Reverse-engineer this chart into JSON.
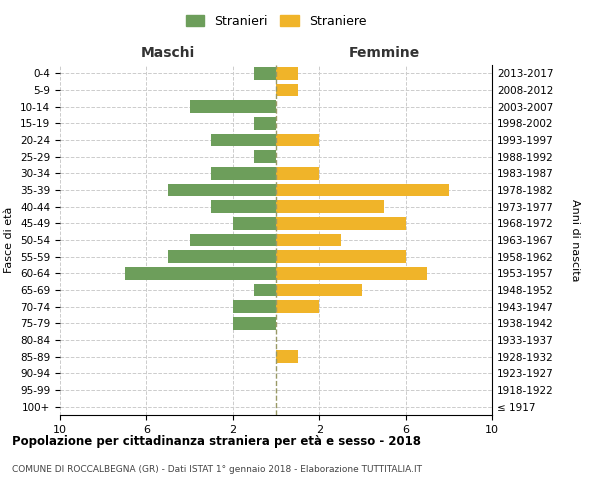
{
  "age_groups": [
    "0-4",
    "5-9",
    "10-14",
    "15-19",
    "20-24",
    "25-29",
    "30-34",
    "35-39",
    "40-44",
    "45-49",
    "50-54",
    "55-59",
    "60-64",
    "65-69",
    "70-74",
    "75-79",
    "80-84",
    "85-89",
    "90-94",
    "95-99",
    "100+"
  ],
  "birth_years": [
    "2013-2017",
    "2008-2012",
    "2003-2007",
    "1998-2002",
    "1993-1997",
    "1988-1992",
    "1983-1987",
    "1978-1982",
    "1973-1977",
    "1968-1972",
    "1963-1967",
    "1958-1962",
    "1953-1957",
    "1948-1952",
    "1943-1947",
    "1938-1942",
    "1933-1937",
    "1928-1932",
    "1923-1927",
    "1918-1922",
    "≤ 1917"
  ],
  "males": [
    1,
    0,
    4,
    1,
    3,
    1,
    3,
    5,
    3,
    2,
    4,
    5,
    7,
    1,
    2,
    2,
    0,
    0,
    0,
    0,
    0
  ],
  "females": [
    1,
    1,
    0,
    0,
    2,
    0,
    2,
    8,
    5,
    6,
    3,
    6,
    7,
    4,
    2,
    0,
    0,
    1,
    0,
    0,
    0
  ],
  "male_color": "#6d9e5b",
  "female_color": "#f0b429",
  "background_color": "#ffffff",
  "grid_color": "#cccccc",
  "dashed_line_color": "#999966",
  "title": "Popolazione per cittadinanza straniera per età e sesso - 2018",
  "subtitle": "COMUNE DI ROCCALBEGNA (GR) - Dati ISTAT 1° gennaio 2018 - Elaborazione TUTTITALIA.IT",
  "xlabel_left": "Maschi",
  "xlabel_right": "Femmine",
  "ylabel_left": "Fasce di età",
  "ylabel_right": "Anni di nascita",
  "legend_male": "Stranieri",
  "legend_female": "Straniere",
  "xlim": 10
}
